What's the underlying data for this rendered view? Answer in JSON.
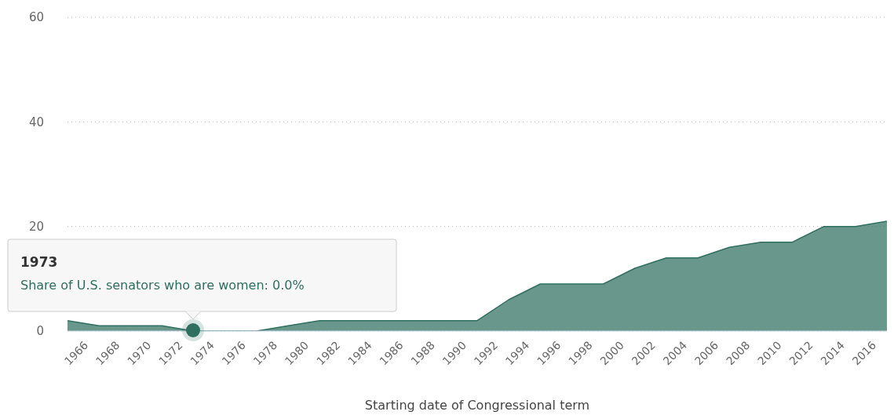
{
  "chart_data": {
    "type": "area",
    "xlabel": "Starting date of Congressional term",
    "x": [
      1965,
      1967,
      1969,
      1971,
      1973,
      1975,
      1977,
      1979,
      1981,
      1983,
      1985,
      1987,
      1989,
      1991,
      1993,
      1995,
      1997,
      1999,
      2001,
      2003,
      2005,
      2007,
      2009,
      2011,
      2013,
      2015,
      2017
    ],
    "series": [
      {
        "color": "#2f6f5f",
        "values": [
          2,
          1,
          1,
          1,
          0,
          0,
          0,
          1,
          2,
          2,
          2,
          2,
          2,
          2,
          6,
          9,
          9,
          9,
          12,
          14,
          14,
          16,
          17,
          17,
          20,
          20,
          21
        ]
      }
    ],
    "xlim": [
      1965,
      2017
    ],
    "xticks": [
      1966,
      1968,
      1970,
      1972,
      1974,
      1976,
      1978,
      1980,
      1982,
      1984,
      1986,
      1988,
      1990,
      1992,
      1994,
      1996,
      1998,
      2000,
      2002,
      2004,
      2006,
      2008,
      2010,
      2012,
      2014,
      2016
    ],
    "ylim": [
      0,
      60
    ],
    "yticks": [
      0,
      20,
      40,
      60
    ],
    "grid": "y",
    "legend": false,
    "annotations": [
      "1973",
      "Share of U.S. senators who are women: 0.0%"
    ]
  }
}
